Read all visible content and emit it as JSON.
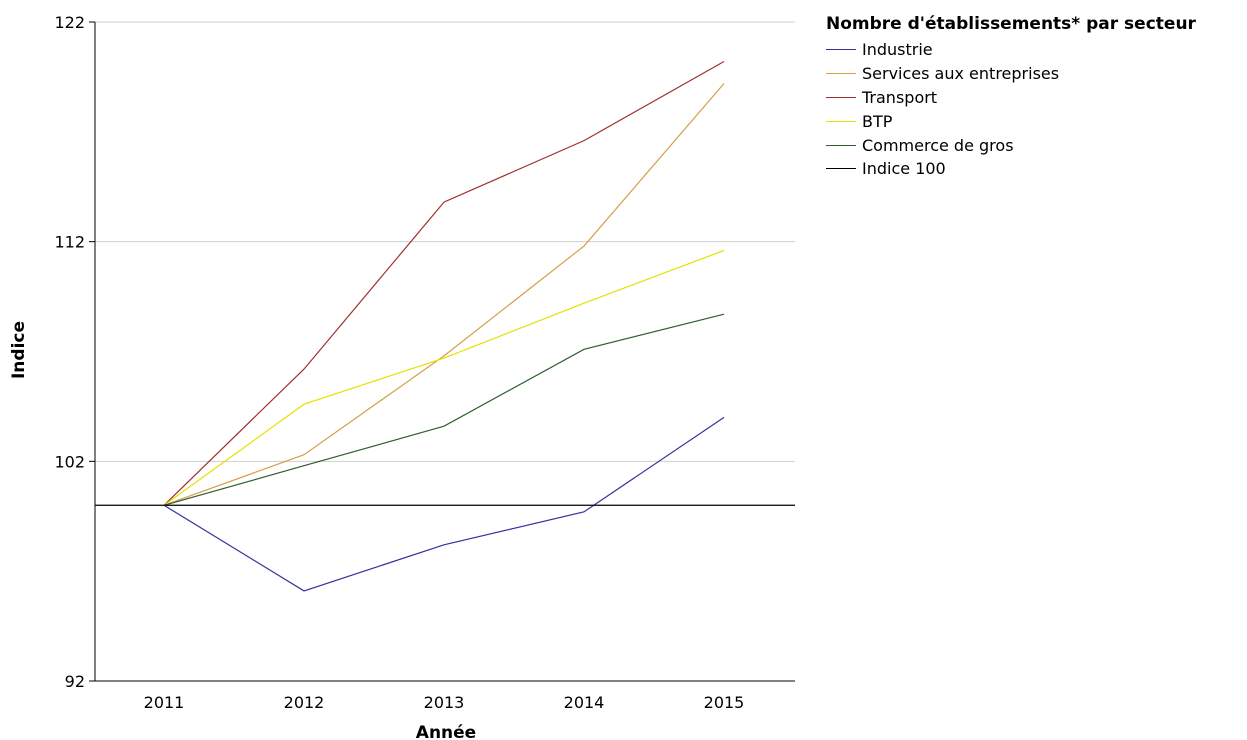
{
  "chart_data": {
    "type": "line",
    "xlabel": "Année",
    "ylabel": "Indice",
    "x": [
      "2011",
      "2012",
      "2013",
      "2014",
      "2015"
    ],
    "ylim": [
      92,
      122
    ],
    "yticks": [
      92,
      102,
      112,
      122
    ],
    "grid": true,
    "legend_title": "Nombre d'établissements* par secteur",
    "legend_position": "top-right",
    "series": [
      {
        "name": "Industrie",
        "color": "#3333a0",
        "values": [
          100,
          96.1,
          98.2,
          99.7,
          104
        ]
      },
      {
        "name": "Services aux entreprises",
        "color": "#d4a04a",
        "values": [
          100,
          102.3,
          106.8,
          111.8,
          119.2
        ]
      },
      {
        "name": "Transport",
        "color": "#a03030",
        "values": [
          100,
          106.2,
          113.8,
          116.6,
          120.2
        ]
      },
      {
        "name": "BTP",
        "color": "#e6e000",
        "values": [
          100,
          104.6,
          106.7,
          109.2,
          111.6
        ]
      },
      {
        "name": "Commerce de gros",
        "color": "#2f5f2f",
        "values": [
          100,
          101.8,
          103.6,
          107.1,
          108.7
        ]
      },
      {
        "name": "Indice 100",
        "color": "#000000",
        "values": [
          100,
          100,
          100,
          100,
          100
        ]
      }
    ]
  }
}
